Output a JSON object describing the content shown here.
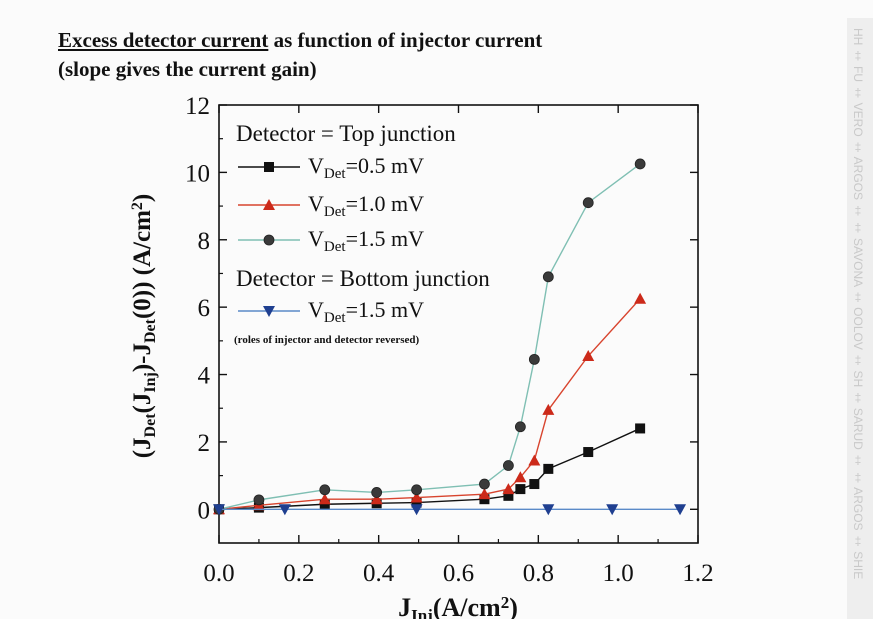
{
  "heading": {
    "line1_underlined": "Excess detector current",
    "line1_rest": " as function of injector current",
    "line2": "(slope gives the current gain)"
  },
  "margin_strip_text": "HH ‡ FU ‡ VERO ‡ ARGOS ‡ ‡ SAVONA ‡ OOLOV ‡ SH ‡ SARUD ‡ ‡ ARGOS ‡ SHIE",
  "chart_data": {
    "type": "line",
    "xlabel": "J_Inj(A/cm²)",
    "ylabel": "(J_Det(J_Inj)-J_Det(0)) (A/cm²)",
    "xlim": [
      0,
      1.2
    ],
    "ylim": [
      -1,
      12
    ],
    "xticks": [
      "0.0",
      "0.2",
      "0.4",
      "0.6",
      "0.8",
      "1.0",
      "1.2"
    ],
    "yticks": [
      "0",
      "2",
      "4",
      "6",
      "8",
      "10",
      "12"
    ],
    "grid": false,
    "legend_position": "top-left",
    "legend_groups": [
      {
        "title": "Detector = Top junction"
      },
      {
        "title": "Detector = Bottom junction"
      }
    ],
    "legend_note": "(roles of injector and detector reversed)",
    "series": [
      {
        "name": "V_Det=0.5 mV",
        "group": 0,
        "marker": "square",
        "color": "#111111",
        "line_color": "#111111",
        "x": [
          0.0,
          0.1,
          0.265,
          0.395,
          0.495,
          0.665,
          0.725,
          0.755,
          0.79,
          0.825,
          0.925,
          1.055
        ],
        "y": [
          0.0,
          0.05,
          0.15,
          0.18,
          0.2,
          0.3,
          0.4,
          0.6,
          0.75,
          1.2,
          1.7,
          2.4
        ]
      },
      {
        "name": "V_Det=1.0 mV",
        "group": 0,
        "marker": "triangle-up",
        "color": "#cc2a1a",
        "line_color": "#d8442e",
        "x": [
          0.0,
          0.1,
          0.265,
          0.395,
          0.495,
          0.665,
          0.725,
          0.755,
          0.79,
          0.825,
          0.925,
          1.055
        ],
        "y": [
          0.0,
          0.12,
          0.3,
          0.3,
          0.35,
          0.45,
          0.6,
          0.95,
          1.45,
          2.95,
          4.55,
          6.25
        ]
      },
      {
        "name": "V_Det=1.5 mV",
        "group": 0,
        "marker": "circle",
        "color": "#3a3a3a",
        "line_color": "#7fbfb3",
        "x": [
          0.0,
          0.1,
          0.265,
          0.395,
          0.495,
          0.665,
          0.725,
          0.755,
          0.79,
          0.825,
          0.925,
          1.055
        ],
        "y": [
          0.0,
          0.28,
          0.58,
          0.5,
          0.58,
          0.75,
          1.3,
          2.45,
          4.45,
          6.9,
          9.1,
          10.25
        ]
      },
      {
        "name": "V_Det=1.5 mV",
        "group": 1,
        "marker": "triangle-down",
        "color": "#1f3f90",
        "line_color": "#5a8ac8",
        "x": [
          0.0,
          0.165,
          0.495,
          0.825,
          0.985,
          1.155
        ],
        "y": [
          0.0,
          0.0,
          0.0,
          0.0,
          0.0,
          0.0
        ]
      }
    ]
  }
}
